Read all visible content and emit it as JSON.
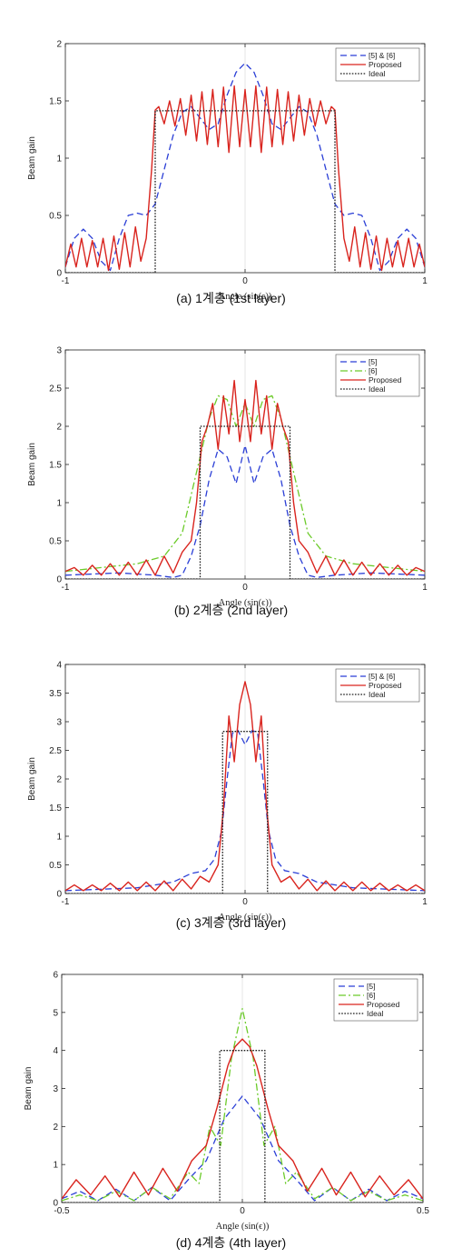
{
  "chart_data": [
    {
      "type": "line",
      "caption": "(a) 1계층 (1st layer)",
      "ylabel": "Beam gain",
      "xlabel": "Angle (sin(ϵ))",
      "xlim": [
        -1,
        1
      ],
      "ylim": [
        0,
        2
      ],
      "xticks": [
        "-1",
        "0",
        "1"
      ],
      "yticks": [
        "0",
        "0.5",
        "1",
        "1.5",
        "2"
      ],
      "legend_position": "top-right",
      "series": [
        {
          "name": "[5] & [6]",
          "color": "#2b3fd6",
          "dash": "7,4",
          "x": [
            -1,
            -0.95,
            -0.9,
            -0.85,
            -0.8,
            -0.75,
            -0.7,
            -0.65,
            -0.6,
            -0.55,
            -0.5,
            -0.45,
            -0.4,
            -0.35,
            -0.3,
            -0.25,
            -0.2,
            -0.15,
            -0.1,
            -0.05,
            0,
            0.05,
            0.1,
            0.15,
            0.2,
            0.25,
            0.3,
            0.35,
            0.4,
            0.45,
            0.5,
            0.55,
            0.6,
            0.65,
            0.7,
            0.75,
            0.8,
            0.85,
            0.9,
            0.95,
            1
          ],
          "y": [
            0.05,
            0.3,
            0.38,
            0.3,
            0.1,
            0.02,
            0.3,
            0.5,
            0.52,
            0.5,
            0.6,
            0.9,
            1.2,
            1.4,
            1.45,
            1.35,
            1.25,
            1.3,
            1.55,
            1.75,
            1.83,
            1.75,
            1.55,
            1.3,
            1.25,
            1.35,
            1.45,
            1.4,
            1.2,
            0.9,
            0.6,
            0.5,
            0.52,
            0.5,
            0.3,
            0.02,
            0.1,
            0.3,
            0.38,
            0.3,
            0.05
          ]
        },
        {
          "name": "Proposed",
          "color": "#d9241e",
          "dash": "",
          "x": [
            -1,
            -0.97,
            -0.94,
            -0.91,
            -0.88,
            -0.85,
            -0.82,
            -0.79,
            -0.76,
            -0.73,
            -0.7,
            -0.67,
            -0.64,
            -0.61,
            -0.58,
            -0.55,
            -0.52,
            -0.5,
            -0.48,
            -0.45,
            -0.42,
            -0.39,
            -0.36,
            -0.33,
            -0.3,
            -0.27,
            -0.24,
            -0.21,
            -0.18,
            -0.15,
            -0.12,
            -0.09,
            -0.06,
            -0.03,
            0,
            0.03,
            0.06,
            0.09,
            0.12,
            0.15,
            0.18,
            0.21,
            0.24,
            0.27,
            0.3,
            0.33,
            0.36,
            0.39,
            0.42,
            0.45,
            0.48,
            0.5,
            0.52,
            0.55,
            0.58,
            0.61,
            0.64,
            0.67,
            0.7,
            0.73,
            0.76,
            0.79,
            0.82,
            0.85,
            0.88,
            0.91,
            0.94,
            0.97,
            1
          ],
          "y": [
            0.05,
            0.25,
            0.05,
            0.3,
            0.05,
            0.28,
            0.05,
            0.3,
            0.02,
            0.32,
            0.03,
            0.35,
            0.05,
            0.4,
            0.1,
            0.3,
            0.9,
            1.42,
            1.45,
            1.3,
            1.5,
            1.28,
            1.52,
            1.2,
            1.55,
            1.15,
            1.58,
            1.12,
            1.6,
            1.1,
            1.62,
            1.05,
            1.63,
            1.1,
            1.6,
            1.1,
            1.63,
            1.05,
            1.62,
            1.1,
            1.6,
            1.12,
            1.58,
            1.15,
            1.55,
            1.2,
            1.52,
            1.28,
            1.5,
            1.3,
            1.45,
            1.42,
            0.9,
            0.3,
            0.1,
            0.4,
            0.05,
            0.35,
            0.03,
            0.32,
            0.02,
            0.3,
            0.05,
            0.28,
            0.05,
            0.3,
            0.05,
            0.25,
            0.05
          ]
        },
        {
          "name": "Ideal",
          "color": "#1a1a1a",
          "dash": "1.6,1.6",
          "x": [
            -1,
            -0.5,
            -0.5,
            0.5,
            0.5,
            1
          ],
          "y": [
            0,
            0,
            1.414,
            1.414,
            0,
            0
          ]
        }
      ]
    },
    {
      "type": "line",
      "caption": "(b) 2계층 (2nd layer)",
      "ylabel": "Beam gain",
      "xlabel": "Angle (sin(ϵ))",
      "xlim": [
        -1,
        1
      ],
      "ylim": [
        0,
        3
      ],
      "xticks": [
        "-1",
        "0",
        "1"
      ],
      "yticks": [
        "0",
        "0.5",
        "1",
        "1.5",
        "2",
        "2.5",
        "3"
      ],
      "legend_position": "top-right",
      "series": [
        {
          "name": "[5]",
          "color": "#2b3fd6",
          "dash": "7,4",
          "x": [
            -1,
            -0.7,
            -0.5,
            -0.4,
            -0.35,
            -0.3,
            -0.25,
            -0.2,
            -0.15,
            -0.1,
            -0.05,
            0,
            0.05,
            0.1,
            0.15,
            0.2,
            0.25,
            0.3,
            0.35,
            0.4,
            0.5,
            0.7,
            1
          ],
          "y": [
            0.05,
            0.08,
            0.05,
            0.02,
            0.05,
            0.3,
            0.7,
            1.3,
            1.7,
            1.6,
            1.25,
            1.75,
            1.25,
            1.6,
            1.7,
            1.3,
            0.7,
            0.3,
            0.05,
            0.02,
            0.05,
            0.08,
            0.05
          ]
        },
        {
          "name": "[6]",
          "color": "#6ccb2a",
          "dash": "8,3,2,3",
          "x": [
            -1,
            -0.8,
            -0.6,
            -0.45,
            -0.35,
            -0.3,
            -0.25,
            -0.2,
            -0.15,
            -0.1,
            -0.05,
            0,
            0.05,
            0.1,
            0.15,
            0.2,
            0.25,
            0.3,
            0.35,
            0.45,
            0.6,
            0.8,
            1
          ],
          "y": [
            0.1,
            0.15,
            0.2,
            0.3,
            0.6,
            1.1,
            1.6,
            2.1,
            2.4,
            2.35,
            2.0,
            2.3,
            2.0,
            2.35,
            2.4,
            2.1,
            1.6,
            1.1,
            0.6,
            0.3,
            0.2,
            0.15,
            0.1
          ]
        },
        {
          "name": "Proposed",
          "color": "#d9241e",
          "dash": "",
          "x": [
            -1,
            -0.95,
            -0.9,
            -0.85,
            -0.8,
            -0.75,
            -0.7,
            -0.65,
            -0.6,
            -0.55,
            -0.5,
            -0.45,
            -0.4,
            -0.35,
            -0.3,
            -0.27,
            -0.24,
            -0.21,
            -0.18,
            -0.15,
            -0.12,
            -0.09,
            -0.06,
            -0.03,
            0,
            0.03,
            0.06,
            0.09,
            0.12,
            0.15,
            0.18,
            0.21,
            0.24,
            0.27,
            0.3,
            0.35,
            0.4,
            0.45,
            0.5,
            0.55,
            0.6,
            0.65,
            0.7,
            0.75,
            0.8,
            0.85,
            0.9,
            0.95,
            1
          ],
          "y": [
            0.1,
            0.15,
            0.05,
            0.18,
            0.05,
            0.2,
            0.05,
            0.22,
            0.05,
            0.25,
            0.05,
            0.3,
            0.08,
            0.35,
            0.5,
            1.0,
            1.8,
            2.0,
            2.3,
            1.7,
            2.4,
            1.9,
            2.6,
            1.8,
            2.35,
            1.8,
            2.6,
            1.9,
            2.4,
            1.7,
            2.3,
            2.0,
            1.8,
            1.0,
            0.5,
            0.35,
            0.08,
            0.3,
            0.05,
            0.25,
            0.05,
            0.22,
            0.05,
            0.2,
            0.05,
            0.18,
            0.05,
            0.15,
            0.1
          ]
        },
        {
          "name": "Ideal",
          "color": "#1a1a1a",
          "dash": "1.6,1.6",
          "x": [
            -1,
            -0.25,
            -0.25,
            0.25,
            0.25,
            1
          ],
          "y": [
            0,
            0,
            2,
            2,
            0,
            0
          ]
        }
      ]
    },
    {
      "type": "line",
      "caption": "(c) 3계층 (3rd layer)",
      "ylabel": "Beam gain",
      "xlabel": "Angle (sin(ϵ))",
      "xlim": [
        -1,
        1
      ],
      "ylim": [
        0,
        4
      ],
      "xticks": [
        "-1",
        "0",
        "1"
      ],
      "yticks": [
        "0",
        "0.5",
        "1",
        "1.5",
        "2",
        "2.5",
        "3",
        "3.5",
        "4"
      ],
      "legend_position": "top-right",
      "series": [
        {
          "name": "[5] & [6]",
          "color": "#2b3fd6",
          "dash": "7,4",
          "x": [
            -1,
            -0.6,
            -0.4,
            -0.3,
            -0.22,
            -0.17,
            -0.13,
            -0.1,
            -0.07,
            -0.04,
            0,
            0.04,
            0.07,
            0.1,
            0.13,
            0.17,
            0.22,
            0.3,
            0.4,
            0.6,
            1
          ],
          "y": [
            0.05,
            0.1,
            0.2,
            0.35,
            0.4,
            0.6,
            1.1,
            2.0,
            2.8,
            2.85,
            2.6,
            2.85,
            2.8,
            2.0,
            1.1,
            0.6,
            0.4,
            0.35,
            0.2,
            0.1,
            0.05
          ]
        },
        {
          "name": "Proposed",
          "color": "#d9241e",
          "dash": "",
          "x": [
            -1,
            -0.95,
            -0.9,
            -0.85,
            -0.8,
            -0.75,
            -0.7,
            -0.65,
            -0.6,
            -0.55,
            -0.5,
            -0.45,
            -0.4,
            -0.35,
            -0.3,
            -0.25,
            -0.2,
            -0.15,
            -0.12,
            -0.09,
            -0.06,
            -0.03,
            0,
            0.03,
            0.06,
            0.09,
            0.12,
            0.15,
            0.2,
            0.25,
            0.3,
            0.35,
            0.4,
            0.45,
            0.5,
            0.55,
            0.6,
            0.65,
            0.7,
            0.75,
            0.8,
            0.85,
            0.9,
            0.95,
            1
          ],
          "y": [
            0.05,
            0.15,
            0.05,
            0.15,
            0.05,
            0.18,
            0.05,
            0.2,
            0.05,
            0.2,
            0.05,
            0.22,
            0.05,
            0.25,
            0.08,
            0.3,
            0.2,
            0.5,
            1.5,
            3.1,
            2.3,
            3.3,
            3.7,
            3.3,
            2.3,
            3.1,
            1.5,
            0.5,
            0.2,
            0.3,
            0.08,
            0.25,
            0.05,
            0.22,
            0.05,
            0.2,
            0.05,
            0.2,
            0.05,
            0.18,
            0.05,
            0.15,
            0.05,
            0.15,
            0.05
          ]
        },
        {
          "name": "Ideal",
          "color": "#1a1a1a",
          "dash": "1.6,1.6",
          "x": [
            -1,
            -0.125,
            -0.125,
            0.125,
            0.125,
            1
          ],
          "y": [
            0,
            0,
            2.83,
            2.83,
            0,
            0
          ]
        }
      ]
    },
    {
      "type": "line",
      "caption": "(d) 4계층 (4th layer)",
      "ylabel": "Beam gain",
      "xlabel": "Angle (sin(ϵ))",
      "xlim": [
        -0.5,
        0.5
      ],
      "ylim": [
        0,
        6
      ],
      "xticks": [
        "-0.5",
        "0",
        "0.5"
      ],
      "yticks": [
        "0",
        "1",
        "2",
        "3",
        "4",
        "5",
        "6"
      ],
      "legend_position": "top-right",
      "series": [
        {
          "name": "[5]",
          "color": "#2b3fd6",
          "dash": "7,4",
          "x": [
            -0.5,
            -0.45,
            -0.4,
            -0.35,
            -0.3,
            -0.25,
            -0.2,
            -0.15,
            -0.1,
            -0.05,
            0,
            0.05,
            0.1,
            0.15,
            0.2,
            0.25,
            0.3,
            0.35,
            0.4,
            0.45,
            0.5
          ],
          "y": [
            0.1,
            0.3,
            0.05,
            0.35,
            0.05,
            0.4,
            0.05,
            0.6,
            1.1,
            2.2,
            2.8,
            2.2,
            1.1,
            0.6,
            0.05,
            0.4,
            0.05,
            0.35,
            0.05,
            0.3,
            0.1
          ]
        },
        {
          "name": "[6]",
          "color": "#6ccb2a",
          "dash": "8,3,2,3",
          "x": [
            -0.5,
            -0.45,
            -0.4,
            -0.35,
            -0.3,
            -0.25,
            -0.2,
            -0.15,
            -0.12,
            -0.09,
            -0.06,
            -0.03,
            0,
            0.03,
            0.06,
            0.09,
            0.12,
            0.15,
            0.2,
            0.25,
            0.3,
            0.35,
            0.4,
            0.45,
            0.5
          ],
          "y": [
            0.05,
            0.2,
            0.05,
            0.3,
            0.05,
            0.4,
            0.1,
            0.8,
            0.5,
            2.0,
            1.5,
            3.8,
            5.1,
            3.8,
            1.5,
            2.0,
            0.5,
            0.8,
            0.1,
            0.4,
            0.05,
            0.3,
            0.05,
            0.2,
            0.05
          ]
        },
        {
          "name": "Proposed",
          "color": "#d9241e",
          "dash": "",
          "x": [
            -0.5,
            -0.46,
            -0.42,
            -0.38,
            -0.34,
            -0.3,
            -0.26,
            -0.22,
            -0.18,
            -0.14,
            -0.1,
            -0.07,
            -0.04,
            -0.02,
            0,
            0.02,
            0.04,
            0.07,
            0.1,
            0.14,
            0.18,
            0.22,
            0.26,
            0.3,
            0.34,
            0.38,
            0.42,
            0.46,
            0.5
          ],
          "y": [
            0.1,
            0.6,
            0.2,
            0.7,
            0.15,
            0.8,
            0.2,
            0.9,
            0.3,
            1.1,
            1.5,
            2.5,
            3.6,
            4.1,
            4.3,
            4.1,
            3.6,
            2.5,
            1.5,
            1.1,
            0.3,
            0.9,
            0.2,
            0.8,
            0.15,
            0.7,
            0.2,
            0.6,
            0.1
          ]
        },
        {
          "name": "Ideal",
          "color": "#1a1a1a",
          "dash": "1.6,1.6",
          "x": [
            -0.5,
            -0.0625,
            -0.0625,
            0.0625,
            0.0625,
            0.5
          ],
          "y": [
            0,
            0,
            4,
            4,
            0,
            0
          ]
        }
      ]
    }
  ]
}
